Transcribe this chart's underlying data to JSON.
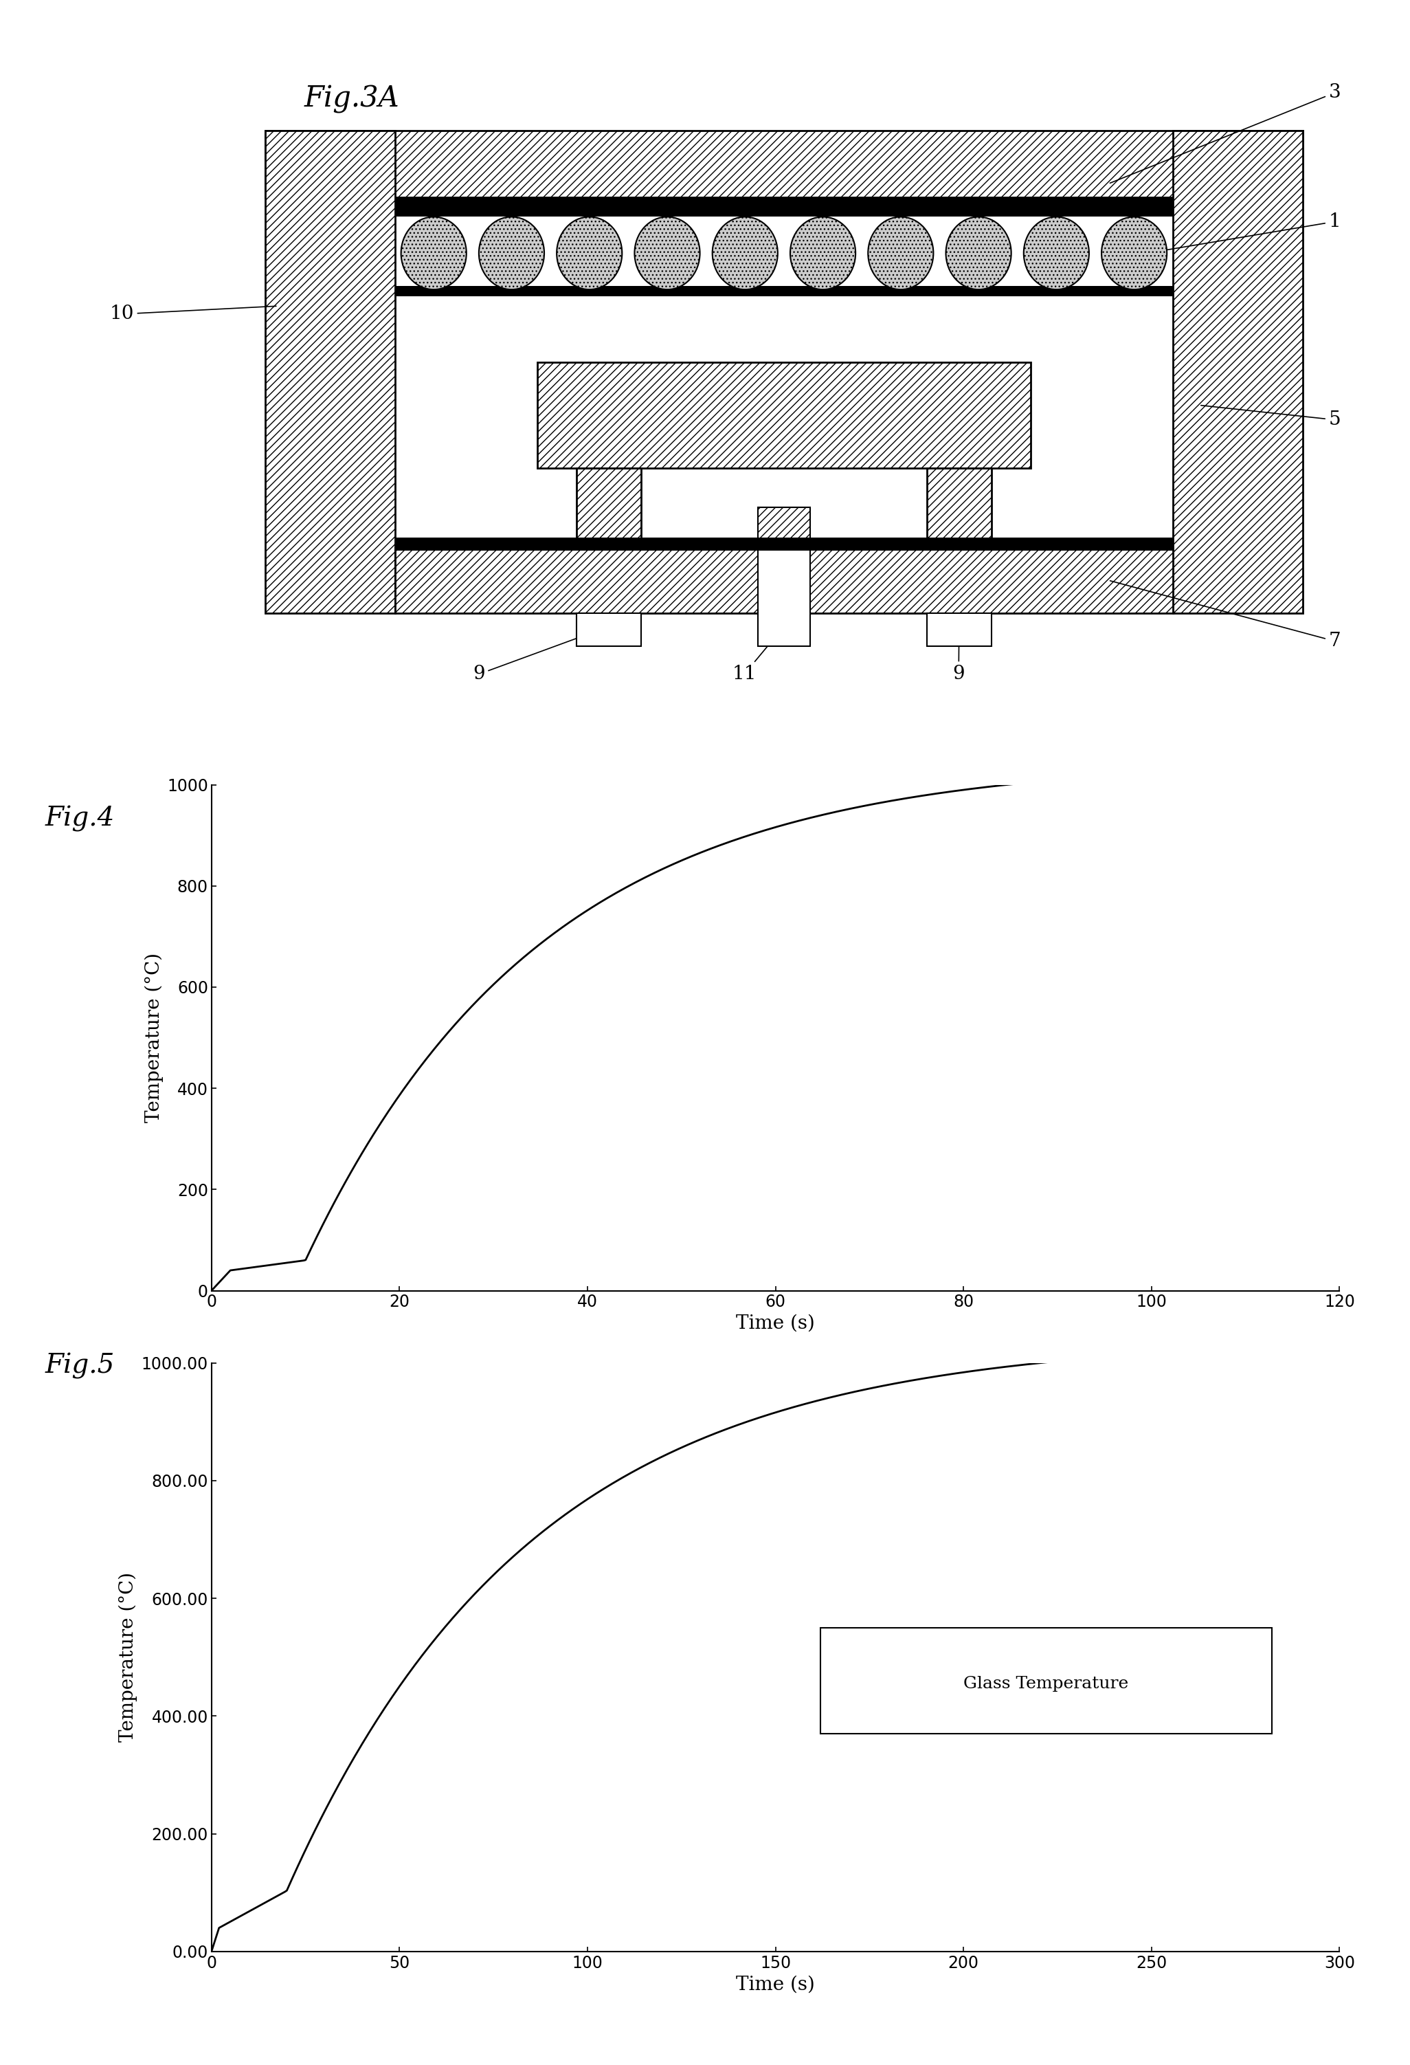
{
  "fig_title_3A": "Fig.3A",
  "fig_title_4": "Fig.4",
  "fig_title_5": "Fig.5",
  "fig4_xlabel": "Time (s)",
  "fig4_ylabel": "Temperature (°C)",
  "fig4_xlim": [
    0,
    120
  ],
  "fig4_ylim": [
    0,
    1000
  ],
  "fig4_xticks": [
    0,
    20,
    40,
    60,
    80,
    100,
    120
  ],
  "fig4_yticks": [
    0,
    200,
    400,
    600,
    800,
    1000
  ],
  "fig5_xlabel": "Time (s)",
  "fig5_ylabel": "Temperature (°C)",
  "fig5_xlim": [
    0,
    300
  ],
  "fig5_xticks": [
    0,
    50,
    100,
    150,
    200,
    250,
    300
  ],
  "fig5_ytick_labels": [
    "0.00",
    "200.00",
    "400.00",
    "600.00",
    "800.00",
    "1000.00"
  ],
  "fig5_ytick_values": [
    0.0,
    200.0,
    400.0,
    600.0,
    800.0,
    1000.0
  ],
  "fig5_legend": "Glass Temperature",
  "background_color": "#ffffff",
  "line_color": "#000000"
}
